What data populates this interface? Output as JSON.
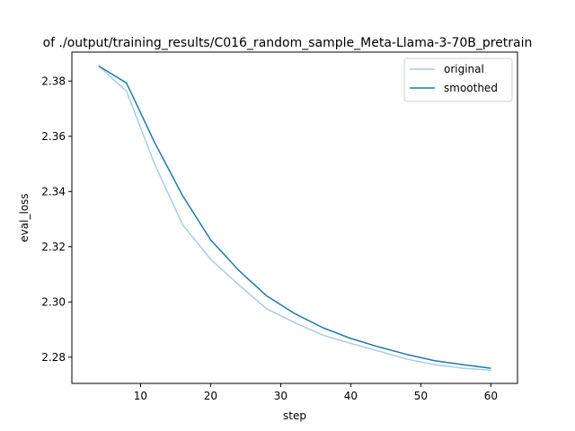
{
  "chart_data": {
    "type": "line",
    "title": "of ./output/training_results/C016_random_sample_Meta-Llama-3-70B_pretrain",
    "xlabel": "step",
    "ylabel": "eval_loss",
    "xlim": [
      0.2,
      63.8
    ],
    "ylim": [
      2.2705,
      2.3905
    ],
    "xticks": [
      10,
      20,
      30,
      40,
      50,
      60
    ],
    "yticks": [
      2.28,
      2.3,
      2.32,
      2.34,
      2.36,
      2.38
    ],
    "ytick_labels": [
      "2.28",
      "2.30",
      "2.32",
      "2.34",
      "2.36",
      "2.38"
    ],
    "grid": false,
    "legend_position": "top-right",
    "x": [
      4,
      8,
      12,
      16,
      20,
      24,
      28,
      32,
      36,
      40,
      44,
      48,
      52,
      56,
      60
    ],
    "series": [
      {
        "name": "original",
        "color": "#a6cee3",
        "values": [
          2.3855,
          2.3763,
          2.35,
          2.328,
          2.3155,
          2.3062,
          2.2975,
          2.2925,
          2.288,
          2.285,
          2.2822,
          2.2793,
          2.2773,
          2.276,
          2.2753
        ]
      },
      {
        "name": "smoothed",
        "color": "#1f78b4",
        "values": [
          2.3855,
          2.3793,
          2.3578,
          2.3385,
          2.3225,
          2.3115,
          2.3022,
          2.2958,
          2.2907,
          2.2868,
          2.2837,
          2.281,
          2.2787,
          2.2773,
          2.276
        ]
      }
    ]
  }
}
